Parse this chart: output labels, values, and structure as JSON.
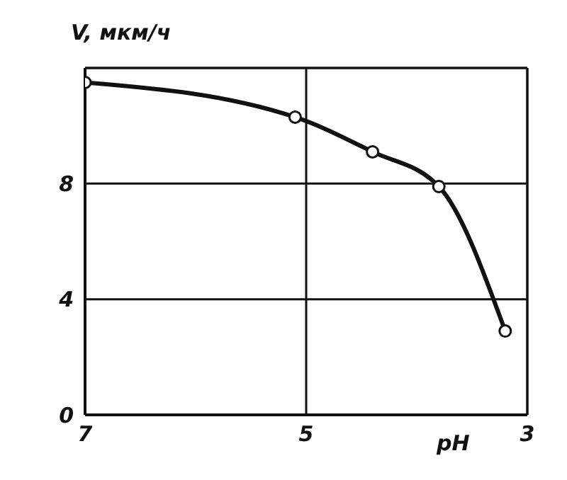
{
  "chart_data": {
    "type": "line",
    "xlabel": "pH",
    "ylabel": "V, мкм/ч",
    "x": [
      7.0,
      5.1,
      4.4,
      3.8,
      3.2
    ],
    "series": [
      {
        "color": "#111111",
        "values": [
          11.5,
          10.3,
          9.1,
          7.9,
          2.9
        ]
      }
    ],
    "xlim": [
      7,
      3
    ],
    "xticks": [
      7,
      5,
      3
    ],
    "ylim": [
      0,
      12
    ],
    "yticks": [
      0,
      4,
      8
    ],
    "grid": true,
    "marker": "circle",
    "line_style": "solid"
  }
}
